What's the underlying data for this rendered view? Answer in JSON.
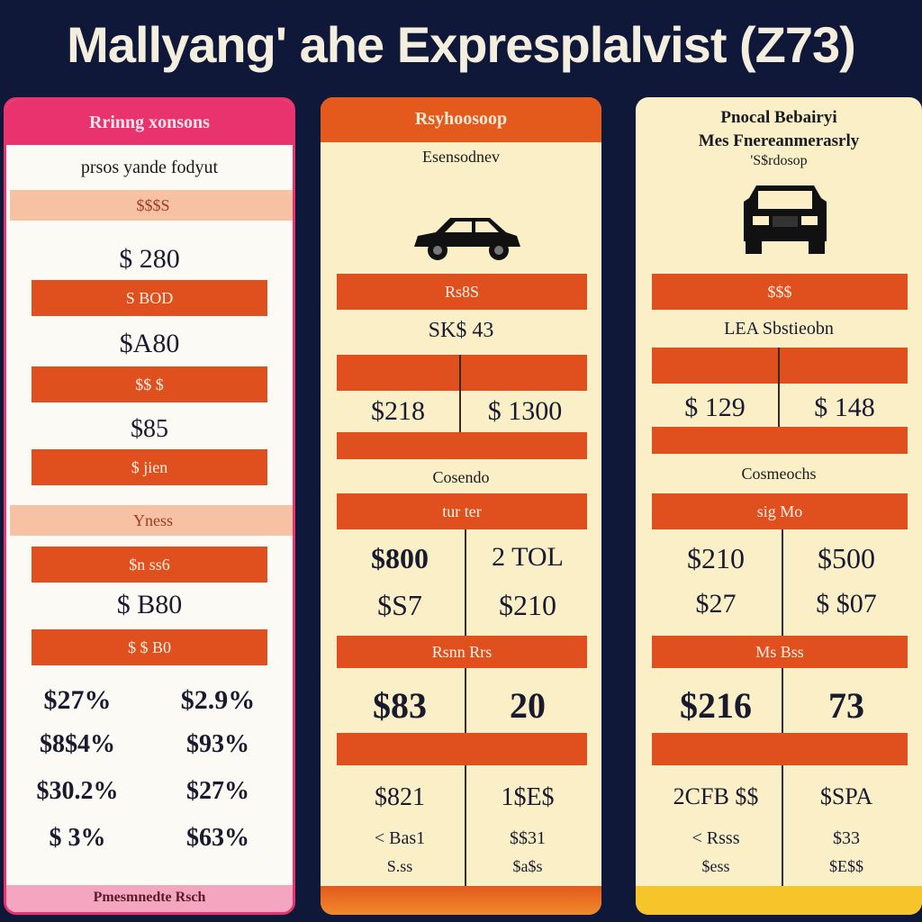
{
  "title": "Mallyang' ahe Expresplalvist (Z73)",
  "colors": {
    "background": "#10183a",
    "accent_orange": "#e04f1e",
    "accent_pink": "#e8336f",
    "panel_cream": "#fbefc8",
    "bottom_yellow": "#f5c52a"
  },
  "panel1": {
    "header": "Rrinng xonsons",
    "subheader": "prsos yande fodyut",
    "band_top": "$$$S",
    "value1": "$ 280",
    "band1": "S BOD",
    "value2": "$A80",
    "band2": "$$ $",
    "value3": "$85",
    "band3": "$ jien",
    "band_pink2": "Yness",
    "band4": "$n ss6",
    "value4": "$ B80",
    "band5": "$ $ B0",
    "rows": [
      [
        "$27%",
        "$2.9%"
      ],
      [
        "$8$4%",
        "$93%"
      ],
      [
        "$30.2%",
        "$27%"
      ],
      [
        "$ 3%",
        "$63%"
      ]
    ],
    "footer": "Pmesmnedte Rsch"
  },
  "panel2": {
    "header": "Rsyhoosoop",
    "subheader": "Esensodnev",
    "car_icon": "sedan-car-icon",
    "band1": "Rs8S",
    "value_center": "SK$ 43",
    "prices": [
      "$218",
      "$ 1300"
    ],
    "section_label": "Cosendo",
    "band2": "tur  ter",
    "grid1": [
      [
        "$800",
        "2 TOL"
      ],
      [
        "$S7",
        "$210"
      ]
    ],
    "band3": "Rsnn Rrs",
    "big": [
      "$83",
      "20"
    ],
    "grid2": [
      [
        "$821",
        "1$E$"
      ],
      [
        "< Bas1",
        "$$31"
      ],
      [
        "S.ss",
        "$a$s"
      ]
    ]
  },
  "panel3": {
    "header_line1": "Pnocal Bebairyi",
    "header_line2": "Mes Fnereanmerasrly",
    "header_line3": "'S$rdosop",
    "car_icon": "suv-front-icon",
    "band1": "$$$",
    "value_center": "LEA Sbstieobn",
    "prices": [
      "$ 129",
      "$ 148"
    ],
    "section_label": "Cosmeochs",
    "band2": "sig  Mo",
    "grid1": [
      [
        "$210",
        "$500"
      ],
      [
        "$27",
        "$ $07"
      ]
    ],
    "band3": "Ms  Bss",
    "big": [
      "$216",
      "73"
    ],
    "grid2": [
      [
        "2CFB $$",
        "$SPA"
      ],
      [
        "< Rsss",
        "$33"
      ],
      [
        "$ess",
        "$E$$"
      ]
    ]
  }
}
